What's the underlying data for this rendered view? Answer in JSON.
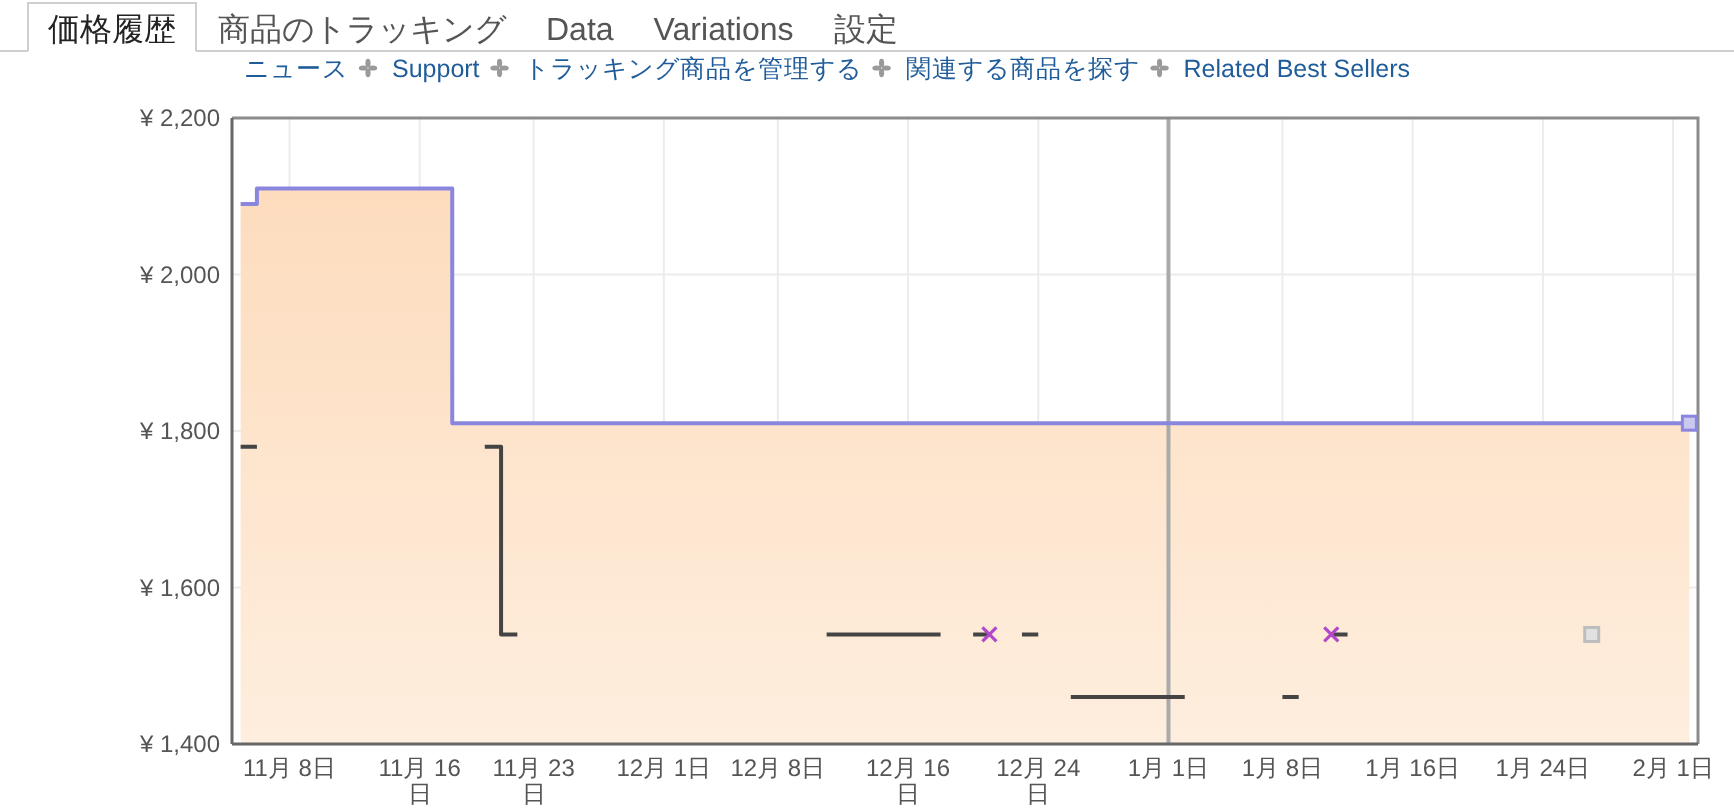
{
  "chart_data": {
    "type": "step",
    "title": "価格履歴",
    "annotations": [
      "商品のトラッキング",
      "Data",
      "Variations",
      "設定",
      "ニュース",
      "Support",
      "トラッキング商品を管理する",
      "関連する商品を探す",
      "Related Best Sellers"
    ],
    "categories": [
      null,
      null,
      null,
      "11月 8日",
      null,
      null,
      null,
      null,
      null,
      null,
      null,
      "11月 16日",
      null,
      null,
      null,
      null,
      null,
      null,
      "11月 23日",
      null,
      null,
      null,
      null,
      null,
      null,
      null,
      "12月 1日",
      null,
      null,
      null,
      null,
      null,
      null,
      "12月 8日",
      null,
      null,
      null,
      null,
      null,
      null,
      null,
      "12月 16日",
      null,
      null,
      null,
      null,
      null,
      null,
      null,
      "12月 24日",
      null,
      null,
      null,
      null,
      null,
      null,
      null,
      "1月 1日",
      null,
      null,
      null,
      null,
      null,
      null,
      "1月 8日",
      null,
      null,
      null,
      null,
      null,
      null,
      null,
      "1月 16日",
      null,
      null,
      null,
      null,
      null,
      null,
      null,
      "1月 24日",
      null,
      null,
      null,
      null,
      null,
      null,
      null,
      "2月 1日",
      null
    ],
    "ylim": [
      1400,
      2200
    ],
    "yticks": [
      {
        "value": 1400,
        "label": "¥ 1,400"
      },
      {
        "value": 1600,
        "label": "¥ 1,600"
      },
      {
        "value": 1800,
        "label": "¥ 1,800"
      },
      {
        "value": 2000,
        "label": "¥ 2,000"
      },
      {
        "value": 2200,
        "label": "¥ 2,200"
      }
    ],
    "grid": true,
    "ref_lines": [
      {
        "axis": "x",
        "value": "1月 1日",
        "color": "#aaaaaa"
      }
    ],
    "series": [
      {
        "type": "area",
        "color": "#fddcbd",
        "values": [
          2090,
          2110,
          2110,
          2110,
          2110,
          2110,
          2110,
          2110,
          2110,
          2110,
          2110,
          2110,
          2110,
          1810,
          1810,
          1810,
          1810,
          1810,
          1810,
          1810,
          1810,
          1810,
          1810,
          1810,
          1810,
          1810,
          1810,
          1810,
          1810,
          1810,
          1810,
          1810,
          1810,
          1810,
          1810,
          1810,
          1810,
          1810,
          1810,
          1810,
          1810,
          1810,
          1810,
          1810,
          1810,
          1810,
          1810,
          1810,
          1810,
          1810,
          1810,
          1810,
          1810,
          1810,
          1810,
          1810,
          1810,
          1810,
          1810,
          1810,
          1810,
          1810,
          1810,
          1810,
          1810,
          1810,
          1810,
          1810,
          1810,
          1810,
          1810,
          1810,
          1810,
          1810,
          1810,
          1810,
          1810,
          1810,
          1810,
          1810,
          1810,
          1810,
          1810,
          1810,
          1810,
          1810,
          1810,
          1810,
          1810,
          1810
        ]
      },
      {
        "color": "#8a86de",
        "values": [
          2090,
          2110,
          2110,
          2110,
          2110,
          2110,
          2110,
          2110,
          2110,
          2110,
          2110,
          2110,
          2110,
          1810,
          1810,
          1810,
          1810,
          1810,
          1810,
          1810,
          1810,
          1810,
          1810,
          1810,
          1810,
          1810,
          1810,
          1810,
          1810,
          1810,
          1810,
          1810,
          1810,
          1810,
          1810,
          1810,
          1810,
          1810,
          1810,
          1810,
          1810,
          1810,
          1810,
          1810,
          1810,
          1810,
          1810,
          1810,
          1810,
          1810,
          1810,
          1810,
          1810,
          1810,
          1810,
          1810,
          1810,
          1810,
          1810,
          1810,
          1810,
          1810,
          1810,
          1810,
          1810,
          1810,
          1810,
          1810,
          1810,
          1810,
          1810,
          1810,
          1810,
          1810,
          1810,
          1810,
          1810,
          1810,
          1810,
          1810,
          1810,
          1810,
          1810,
          1810,
          1810,
          1810,
          1810,
          1810,
          1810,
          1810
        ]
      },
      {
        "color": "#444444",
        "values": [
          1780,
          1780,
          null,
          null,
          null,
          null,
          null,
          null,
          null,
          null,
          null,
          null,
          null,
          null,
          null,
          1780,
          1540,
          1540,
          null,
          null,
          null,
          null,
          null,
          null,
          null,
          null,
          null,
          null,
          null,
          null,
          null,
          null,
          null,
          null,
          null,
          null,
          1540,
          1540,
          1540,
          1540,
          1540,
          1540,
          1540,
          1540,
          null,
          1540,
          1540,
          null,
          1540,
          1540,
          null,
          1460,
          1460,
          1460,
          1460,
          1460,
          1460,
          1460,
          1460,
          null,
          null,
          null,
          null,
          null,
          1460,
          1460,
          null,
          1540,
          1540,
          null,
          null,
          null,
          null,
          null,
          null,
          null,
          null,
          null,
          null,
          null,
          null,
          null,
          null,
          null,
          null,
          null,
          null,
          null,
          null,
          null
        ]
      },
      {
        "type": "scatter",
        "color": "#b347c9",
        "marker": "cross",
        "values": [
          null,
          null,
          null,
          null,
          null,
          null,
          null,
          null,
          null,
          null,
          null,
          null,
          null,
          null,
          null,
          null,
          null,
          null,
          null,
          null,
          null,
          null,
          null,
          null,
          null,
          null,
          null,
          null,
          null,
          null,
          null,
          null,
          null,
          null,
          null,
          null,
          null,
          null,
          null,
          null,
          null,
          null,
          null,
          null,
          null,
          null,
          1540,
          null,
          null,
          null,
          null,
          null,
          null,
          null,
          null,
          null,
          null,
          null,
          null,
          null,
          null,
          null,
          null,
          null,
          null,
          null,
          null,
          1540,
          null,
          null,
          null,
          null,
          null,
          null,
          null,
          null,
          null,
          null,
          null,
          null,
          null,
          null,
          null,
          null,
          null,
          null,
          null,
          null,
          null,
          null
        ]
      },
      {
        "type": "scatter",
        "color": "#8a86de",
        "marker": "square",
        "values": [
          null,
          null,
          null,
          null,
          null,
          null,
          null,
          null,
          null,
          null,
          null,
          null,
          null,
          null,
          null,
          null,
          null,
          null,
          null,
          null,
          null,
          null,
          null,
          null,
          null,
          null,
          null,
          null,
          null,
          null,
          null,
          null,
          null,
          null,
          null,
          null,
          null,
          null,
          null,
          null,
          null,
          null,
          null,
          null,
          null,
          null,
          null,
          null,
          null,
          null,
          null,
          null,
          null,
          null,
          null,
          null,
          null,
          null,
          null,
          null,
          null,
          null,
          null,
          null,
          null,
          null,
          null,
          null,
          null,
          null,
          null,
          null,
          null,
          null,
          null,
          null,
          null,
          null,
          null,
          null,
          null,
          null,
          null,
          null,
          null,
          null,
          null,
          null,
          null,
          1810
        ]
      },
      {
        "type": "scatter",
        "color": "#bdbdbd",
        "marker": "square",
        "values": [
          null,
          null,
          null,
          null,
          null,
          null,
          null,
          null,
          null,
          null,
          null,
          null,
          null,
          null,
          null,
          null,
          null,
          null,
          null,
          null,
          null,
          null,
          null,
          null,
          null,
          null,
          null,
          null,
          null,
          null,
          null,
          null,
          null,
          null,
          null,
          null,
          null,
          null,
          null,
          null,
          null,
          null,
          null,
          null,
          null,
          null,
          null,
          null,
          null,
          null,
          null,
          null,
          null,
          null,
          null,
          null,
          null,
          null,
          null,
          null,
          null,
          null,
          null,
          null,
          null,
          null,
          null,
          null,
          null,
          null,
          null,
          null,
          null,
          null,
          null,
          null,
          null,
          null,
          null,
          null,
          null,
          null,
          null,
          1540,
          null,
          null,
          null,
          null,
          null,
          null
        ]
      }
    ]
  }
}
